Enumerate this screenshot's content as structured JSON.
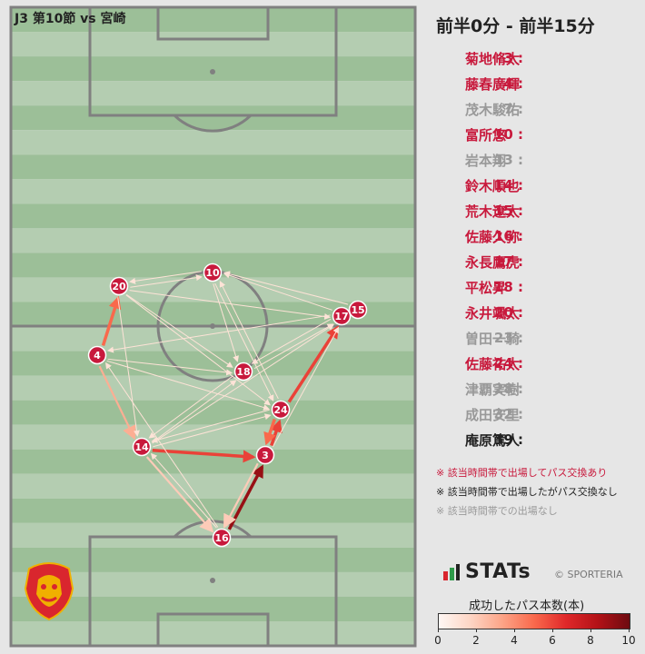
{
  "match_label": "J3 第10節 vs 宮崎",
  "period": "前半0分 - 前半15分",
  "colors": {
    "played_pass": "#c8193c",
    "played_no_pass": "#222222",
    "not_played": "#999999",
    "node": "#c8193c"
  },
  "roster": [
    {
      "num": "3",
      "name": "菊地脩太",
      "status": "pass"
    },
    {
      "num": "4",
      "name": "藤春廣輝",
      "status": "pass"
    },
    {
      "num": "7",
      "name": "茂木駿佑",
      "status": "none"
    },
    {
      "num": "10",
      "name": "富所悠",
      "status": "pass"
    },
    {
      "num": "13",
      "name": "岩本翔",
      "status": "none"
    },
    {
      "num": "14",
      "name": "鈴木順也",
      "status": "pass"
    },
    {
      "num": "15",
      "name": "荒木遼太",
      "status": "pass"
    },
    {
      "num": "16",
      "name": "佐藤久弥",
      "status": "pass"
    },
    {
      "num": "17",
      "name": "永長鷹虎",
      "status": "pass"
    },
    {
      "num": "18",
      "name": "平松昇",
      "status": "pass"
    },
    {
      "num": "20",
      "name": "永井颯太",
      "status": "pass"
    },
    {
      "num": "23",
      "name": "曽田一騎",
      "status": "none"
    },
    {
      "num": "24",
      "name": "佐藤祐太",
      "status": "pass"
    },
    {
      "num": "28",
      "name": "津覇実樹",
      "status": "none"
    },
    {
      "num": "32",
      "name": "成田安里",
      "status": "none"
    },
    {
      "num": "39",
      "name": "庵原篤人",
      "status": "nopass"
    }
  ],
  "legend": {
    "pass": "※ 該当時間帯で出場してパス交換あり",
    "nopass": "※ 該当時間帯で出場したがパス交換なし",
    "none": "※ 該当時間帯での出場なし"
  },
  "brand": {
    "logo": "STATs",
    "copyright": "© SPORTERIA"
  },
  "colorbar": {
    "title": "成功したパス本数(本)",
    "ticks": [
      "0",
      "2",
      "4",
      "6",
      "8",
      "10"
    ]
  },
  "nodes": [
    {
      "id": "10",
      "label": "10"
    },
    {
      "id": "20",
      "label": "20"
    },
    {
      "id": "15",
      "label": "15"
    },
    {
      "id": "17",
      "label": "17"
    },
    {
      "id": "4",
      "label": "4"
    },
    {
      "id": "18",
      "label": "18"
    },
    {
      "id": "24",
      "label": "24"
    },
    {
      "id": "14",
      "label": "14"
    },
    {
      "id": "3",
      "label": "3"
    },
    {
      "id": "16",
      "label": "16"
    }
  ],
  "passes": [
    {
      "from": "16",
      "to": "3",
      "count": 9
    },
    {
      "from": "14",
      "to": "3",
      "count": 6
    },
    {
      "from": "24",
      "to": "17",
      "count": 6
    },
    {
      "from": "4",
      "to": "20",
      "count": 5
    },
    {
      "from": "3",
      "to": "24",
      "count": 6
    },
    {
      "from": "24",
      "to": "3",
      "count": 5
    },
    {
      "from": "4",
      "to": "14",
      "count": 3
    },
    {
      "from": "14",
      "to": "16",
      "count": 2
    },
    {
      "from": "17",
      "to": "10",
      "count": 1
    },
    {
      "from": "10",
      "to": "20",
      "count": 1
    },
    {
      "from": "20",
      "to": "10",
      "count": 1
    },
    {
      "from": "20",
      "to": "17",
      "count": 1
    },
    {
      "from": "4",
      "to": "18",
      "count": 1
    },
    {
      "from": "18",
      "to": "17",
      "count": 1
    },
    {
      "from": "17",
      "to": "18",
      "count": 1
    },
    {
      "from": "10",
      "to": "24",
      "count": 1
    },
    {
      "from": "20",
      "to": "24",
      "count": 1
    },
    {
      "from": "14",
      "to": "17",
      "count": 1
    },
    {
      "from": "4",
      "to": "24",
      "count": 1
    },
    {
      "from": "14",
      "to": "18",
      "count": 1
    },
    {
      "from": "18",
      "to": "14",
      "count": 1
    },
    {
      "from": "16",
      "to": "4",
      "count": 1
    },
    {
      "from": "3",
      "to": "16",
      "count": 2
    },
    {
      "from": "24",
      "to": "10",
      "count": 1
    },
    {
      "from": "20",
      "to": "14",
      "count": 1
    },
    {
      "from": "17",
      "to": "4",
      "count": 1
    },
    {
      "from": "10",
      "to": "18",
      "count": 1
    },
    {
      "from": "24",
      "to": "14",
      "count": 1
    },
    {
      "from": "14",
      "to": "24",
      "count": 1
    },
    {
      "from": "3",
      "to": "17",
      "count": 1
    },
    {
      "from": "16",
      "to": "14",
      "count": 1
    },
    {
      "from": "20",
      "to": "18",
      "count": 1
    },
    {
      "from": "15",
      "to": "10",
      "count": 1
    }
  ]
}
